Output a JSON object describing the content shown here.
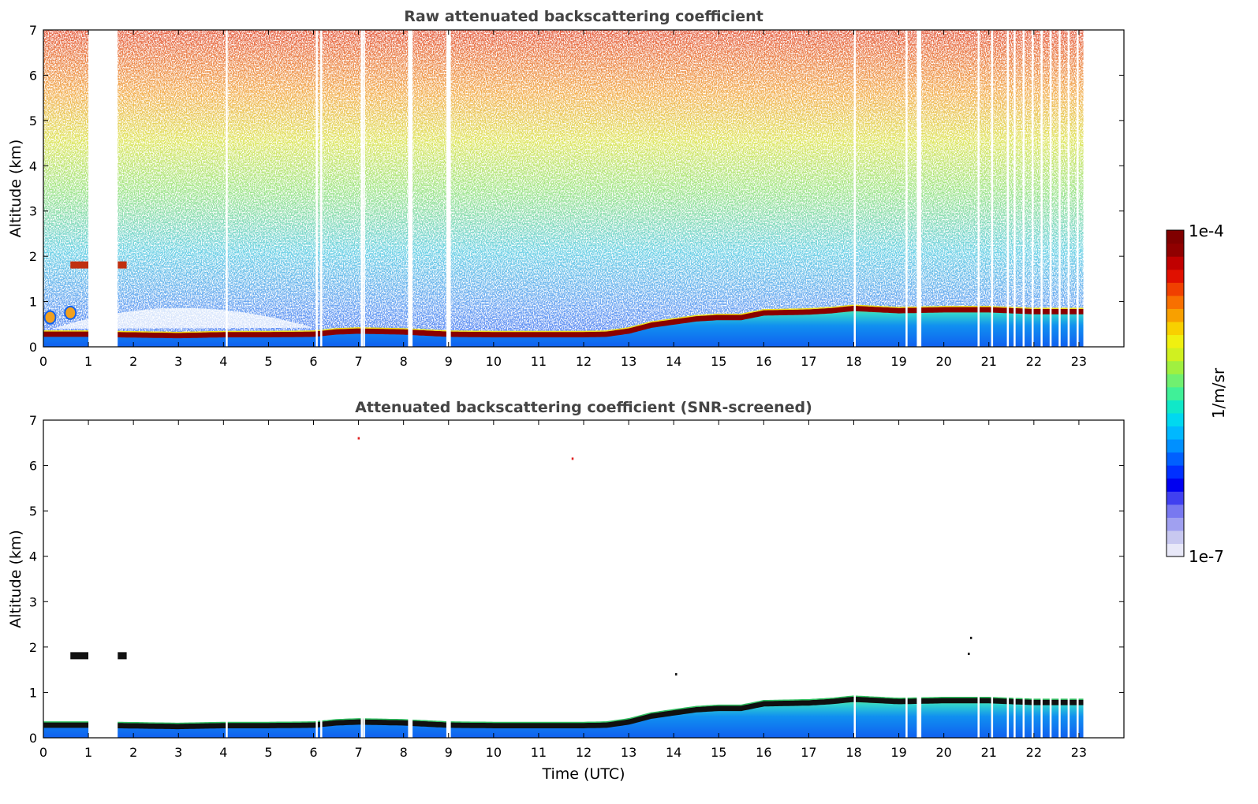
{
  "chart_data": [
    {
      "type": "heatmap",
      "title": "Raw attenuated backscattering coefficient",
      "xlabel": "",
      "ylabel": "Altitude (km)",
      "xlim": [
        0,
        24
      ],
      "ylim": [
        0,
        7
      ],
      "x_ticks": [
        0,
        1,
        2,
        3,
        4,
        5,
        6,
        7,
        8,
        9,
        10,
        11,
        12,
        13,
        14,
        15,
        16,
        17,
        18,
        19,
        20,
        21,
        22,
        23
      ],
      "y_ticks": [
        0,
        1,
        2,
        3,
        4,
        5,
        6,
        7
      ],
      "data_end_time": 23.1,
      "missing_data_intervals": [
        [
          1.0,
          1.65
        ],
        [
          8.1,
          8.2
        ],
        [
          8.95,
          9.05
        ],
        [
          19.4,
          19.5
        ]
      ],
      "extra_gap_times": [
        4.05,
        6.05,
        6.15,
        7.05,
        7.1,
        18.0,
        19.15,
        20.75,
        21.05,
        21.4,
        21.55,
        21.75,
        21.95,
        22.15,
        22.35,
        22.55,
        22.75,
        22.95
      ],
      "boundary_layer_top_km": [
        [
          0,
          0.28
        ],
        [
          1,
          0.28
        ],
        [
          1.65,
          0.27
        ],
        [
          3,
          0.25
        ],
        [
          4,
          0.27
        ],
        [
          5,
          0.27
        ],
        [
          6,
          0.28
        ],
        [
          6.5,
          0.33
        ],
        [
          7,
          0.35
        ],
        [
          8,
          0.33
        ],
        [
          9,
          0.28
        ],
        [
          10,
          0.27
        ],
        [
          11,
          0.27
        ],
        [
          12,
          0.27
        ],
        [
          12.5,
          0.28
        ],
        [
          13,
          0.35
        ],
        [
          13.5,
          0.48
        ],
        [
          14,
          0.55
        ],
        [
          14.5,
          0.62
        ],
        [
          15,
          0.65
        ],
        [
          15.5,
          0.65
        ],
        [
          16,
          0.75
        ],
        [
          17,
          0.77
        ],
        [
          17.5,
          0.8
        ],
        [
          18,
          0.85
        ],
        [
          19,
          0.8
        ],
        [
          20,
          0.82
        ],
        [
          21,
          0.82
        ],
        [
          22,
          0.78
        ],
        [
          23,
          0.78
        ]
      ],
      "elevated_layer": {
        "altitude_km": 1.8,
        "times": [
          [
            0.6,
            1.0
          ],
          [
            1.65,
            1.85
          ]
        ]
      },
      "near_surface_clouds": [
        {
          "time": 0.15,
          "altitude_km": 0.65
        },
        {
          "time": 0.6,
          "altitude_km": 0.75
        }
      ]
    },
    {
      "type": "heatmap",
      "title": "Attenuated backscattering coefficient (SNR-screened)",
      "xlabel": "Time (UTC)",
      "ylabel": "Altitude (km)",
      "xlim": [
        0,
        24
      ],
      "ylim": [
        0,
        7
      ],
      "x_ticks": [
        0,
        1,
        2,
        3,
        4,
        5,
        6,
        7,
        8,
        9,
        10,
        11,
        12,
        13,
        14,
        15,
        16,
        17,
        18,
        19,
        20,
        21,
        22,
        23
      ],
      "y_ticks": [
        0,
        1,
        2,
        3,
        4,
        5,
        6,
        7
      ],
      "data_end_time": 23.1,
      "missing_data_intervals": [
        [
          1.0,
          1.65
        ],
        [
          8.1,
          8.2
        ],
        [
          8.95,
          9.05
        ],
        [
          19.4,
          19.5
        ]
      ],
      "extra_gap_times": [
        4.05,
        6.05,
        6.15,
        7.05,
        7.1,
        18.0,
        19.15,
        20.75,
        21.05,
        21.4,
        21.55,
        21.75,
        21.95,
        22.15,
        22.35,
        22.55,
        22.75,
        22.95
      ],
      "boundary_layer_top_km": [
        [
          0,
          0.28
        ],
        [
          1,
          0.28
        ],
        [
          1.65,
          0.27
        ],
        [
          3,
          0.25
        ],
        [
          4,
          0.27
        ],
        [
          5,
          0.27
        ],
        [
          6,
          0.28
        ],
        [
          6.5,
          0.33
        ],
        [
          7,
          0.35
        ],
        [
          8,
          0.33
        ],
        [
          9,
          0.28
        ],
        [
          10,
          0.27
        ],
        [
          11,
          0.27
        ],
        [
          12,
          0.27
        ],
        [
          12.5,
          0.28
        ],
        [
          13,
          0.35
        ],
        [
          13.5,
          0.48
        ],
        [
          14,
          0.55
        ],
        [
          14.5,
          0.62
        ],
        [
          15,
          0.65
        ],
        [
          15.5,
          0.65
        ],
        [
          16,
          0.75
        ],
        [
          17,
          0.77
        ],
        [
          17.5,
          0.8
        ],
        [
          18,
          0.85
        ],
        [
          19,
          0.8
        ],
        [
          20,
          0.82
        ],
        [
          21,
          0.82
        ],
        [
          22,
          0.78
        ],
        [
          23,
          0.78
        ]
      ],
      "elevated_layer": {
        "altitude_km": 1.8,
        "times": [
          [
            0.6,
            1.0
          ],
          [
            1.65,
            1.85
          ]
        ]
      },
      "isolated_points": [
        {
          "time": 7.0,
          "altitude_km": 6.6
        },
        {
          "time": 11.75,
          "altitude_km": 6.15
        },
        {
          "time": 20.6,
          "altitude_km": 2.2
        },
        {
          "time": 20.55,
          "altitude_km": 1.85
        },
        {
          "time": 14.05,
          "altitude_km": 1.4
        }
      ]
    }
  ],
  "colorbar": {
    "label": "1/m/sr",
    "min_label": "1e-7",
    "max_label": "1e-4",
    "scale": "log",
    "colors": [
      "#e8e8f8",
      "#c8c8f0",
      "#a0a0f0",
      "#7878f0",
      "#4040f0",
      "#0000f0",
      "#0030ff",
      "#0060ff",
      "#0090ff",
      "#00b8ff",
      "#00d8f0",
      "#10e8c8",
      "#40f098",
      "#70f070",
      "#a0f040",
      "#d0f020",
      "#f0f010",
      "#f8d000",
      "#f8a000",
      "#f87000",
      "#f04000",
      "#e01000",
      "#c00000",
      "#900000",
      "#800000"
    ]
  }
}
